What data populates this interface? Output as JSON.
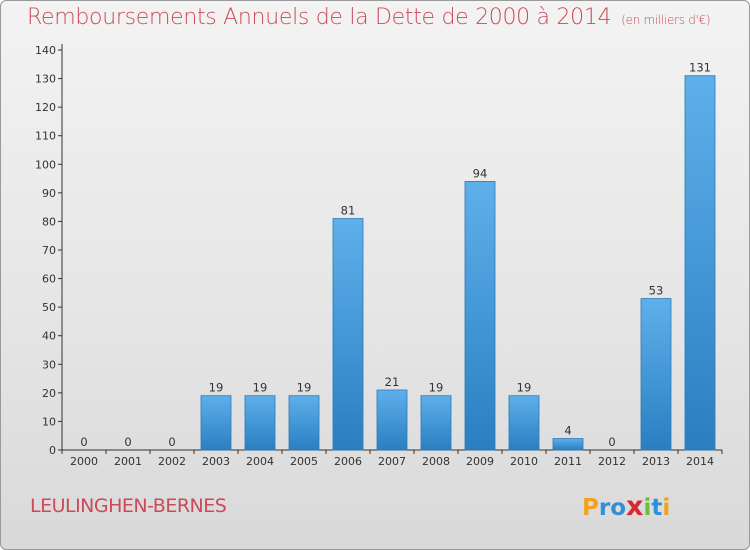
{
  "title": "Remboursements Annuels de la Dette de 2000 à 2014",
  "unit_note": "(en milliers d'€)",
  "commune": "LEULINGHEN-BERNES",
  "logo": {
    "letters": [
      "P",
      "r",
      "o",
      "x",
      "i",
      "t",
      "i"
    ],
    "colors": [
      "#f2a21c",
      "#2f8fd8",
      "#2f8fd8",
      "#d8292f",
      "#6cbd3f",
      "#2f8fd8",
      "#f2a21c"
    ]
  },
  "colors": {
    "bar_top": "#5eb0ea",
    "bar_bottom": "#2a7fc1",
    "title": "#cc4a58"
  },
  "chart_data": {
    "type": "bar",
    "categories": [
      "2000",
      "2001",
      "2002",
      "2003",
      "2004",
      "2005",
      "2006",
      "2007",
      "2008",
      "2009",
      "2010",
      "2011",
      "2012",
      "2013",
      "2014"
    ],
    "values": [
      0,
      0,
      0,
      19,
      19,
      19,
      81,
      21,
      19,
      94,
      19,
      4,
      0,
      53,
      131
    ],
    "ylim": [
      0,
      140
    ],
    "yticks": [
      0,
      10,
      20,
      30,
      40,
      50,
      60,
      70,
      80,
      90,
      100,
      110,
      120,
      130,
      140
    ],
    "grid": false,
    "data_labels": true
  }
}
